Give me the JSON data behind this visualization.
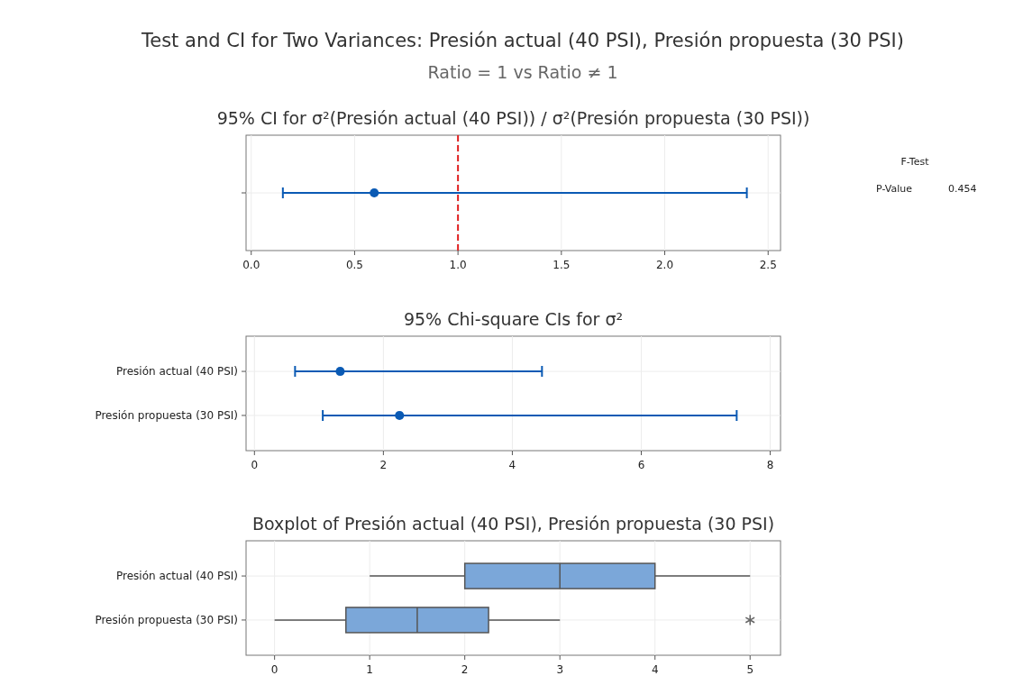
{
  "chart_data": [
    {
      "type": "other",
      "title": "Test and CI for Two Variances: Presión actual (40 PSI), Presión propuesta (30 PSI)",
      "subtitle": "Ratio = 1 vs Ratio ≠ 1"
    },
    {
      "type": "scatter",
      "orientation": "horizontal",
      "title": "95% CI for σ²(Presión actual (40 PSI)) / σ²(Presión propuesta (30 PSI))",
      "categories": [
        null
      ],
      "values": [
        0.595
      ],
      "errors": [
        [
          0.153,
          2.397
        ]
      ],
      "color": "#0a5ab4",
      "marker": "circle",
      "xlim": [
        -0.025,
        2.56
      ],
      "xticks": [
        {
          "value": 0,
          "label": "0.0"
        },
        0.5,
        {
          "value": 1,
          "label": "1.0"
        },
        1.5,
        {
          "value": 2,
          "label": "2.0"
        },
        2.5
      ],
      "grid": true,
      "ref_lines": [
        {
          "axis": "x",
          "value": 1,
          "color": "#e02020",
          "line_style": "dashed"
        }
      ]
    },
    {
      "type": "other",
      "title": "F-Test",
      "annotations": [
        "P-Value",
        "0.454"
      ]
    },
    {
      "type": "scatter",
      "orientation": "horizontal",
      "title": "95% Chi-square CIs for σ²",
      "categories": [
        "Presión actual (40 PSI)",
        "Presión propuesta (30 PSI)"
      ],
      "values": [
        1.33,
        2.25
      ],
      "errors": [
        [
          0.63,
          4.46
        ],
        [
          1.06,
          7.48
        ]
      ],
      "color": "#0a5ab4",
      "marker": "circle",
      "xlim": [
        -0.13,
        8.16
      ],
      "xticks": [
        0,
        2,
        4,
        6,
        8
      ],
      "grid": true
    },
    {
      "type": "box",
      "orientation": "horizontal",
      "title": "Boxplot of Presión actual (40 PSI), Presión propuesta (30 PSI)",
      "categories": [
        "Presión actual (40 PSI)",
        "Presión propuesta (30 PSI)"
      ],
      "color": "#7ba7d9",
      "xlim": [
        -0.3,
        5.32
      ],
      "xticks": [
        0,
        1,
        2,
        3,
        4,
        5
      ],
      "grid": true,
      "boxes": [
        {
          "low": 1,
          "q1": 2,
          "median": 3,
          "q3": 4,
          "high": 5
        },
        {
          "low": 0,
          "q1": 0.75,
          "median": 1.5,
          "q3": 2.25,
          "high": 3,
          "outliers": [
            5
          ]
        }
      ]
    }
  ]
}
